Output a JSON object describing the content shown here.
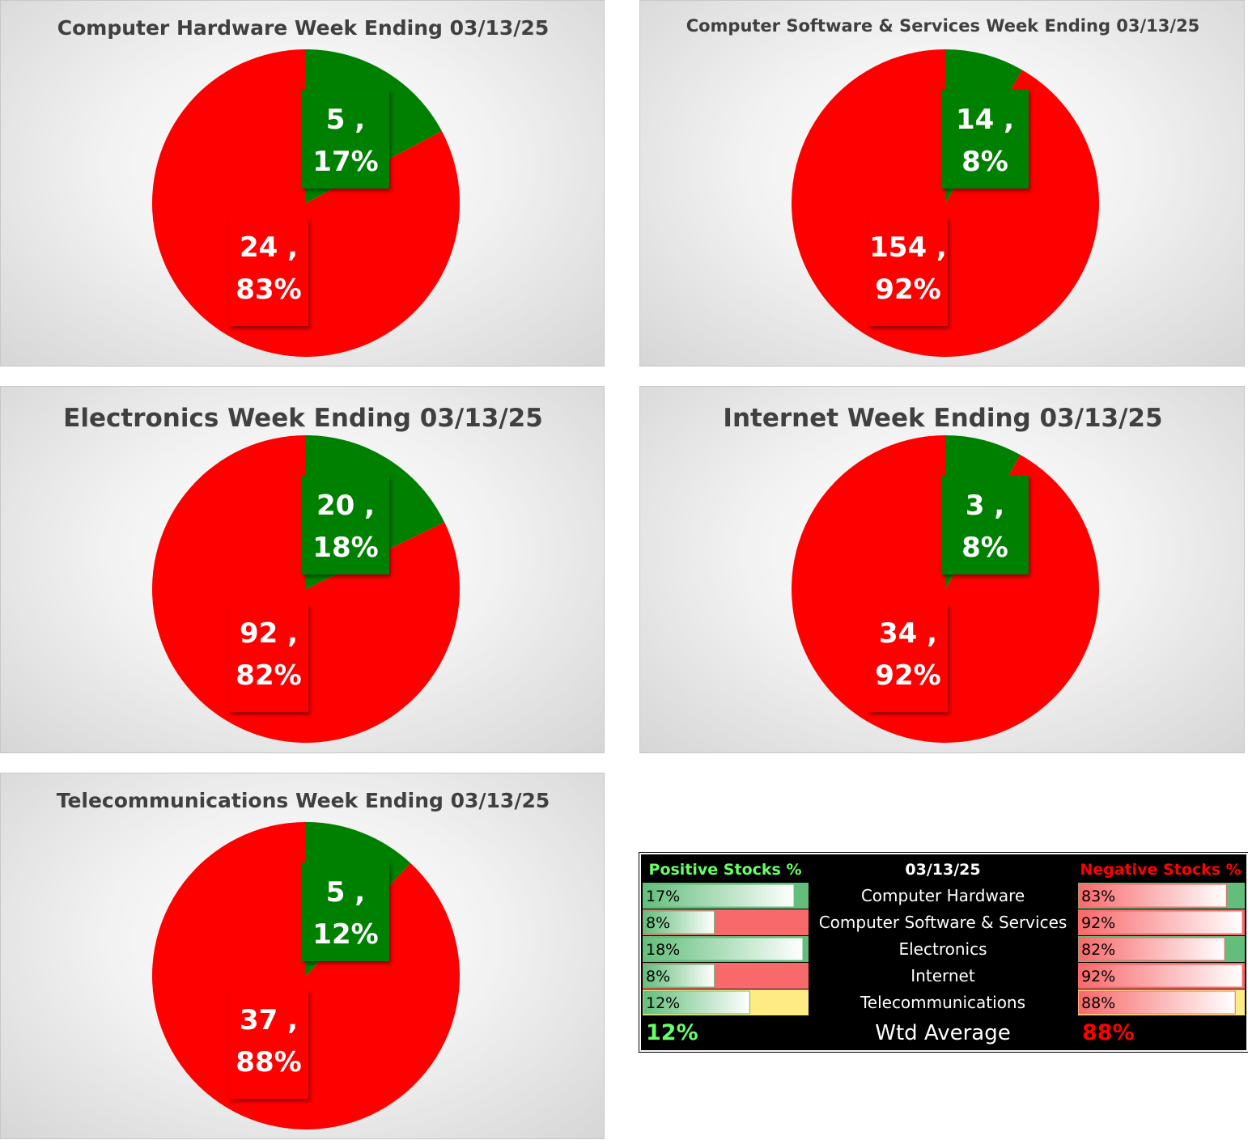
{
  "chart_data": [
    {
      "type": "pie",
      "title": "Computer Hardware Week Ending 03/13/25",
      "categories": [
        "Positive",
        "Negative"
      ],
      "values": [
        5,
        24
      ],
      "percent_labels": [
        "17%",
        "83%"
      ],
      "colors": [
        "#008000",
        "#ff0000"
      ]
    },
    {
      "type": "pie",
      "title": "Computer Software & Services Week Ending 03/13/25",
      "categories": [
        "Positive",
        "Negative"
      ],
      "values": [
        14,
        154
      ],
      "percent_labels": [
        "8%",
        "92%"
      ],
      "colors": [
        "#008000",
        "#ff0000"
      ]
    },
    {
      "type": "pie",
      "title": "Electronics Week Ending 03/13/25",
      "categories": [
        "Positive",
        "Negative"
      ],
      "values": [
        20,
        92
      ],
      "percent_labels": [
        "18%",
        "82%"
      ],
      "colors": [
        "#008000",
        "#ff0000"
      ]
    },
    {
      "type": "pie",
      "title": "Internet Week Ending 03/13/25",
      "categories": [
        "Positive",
        "Negative"
      ],
      "values": [
        3,
        34
      ],
      "percent_labels": [
        "8%",
        "92%"
      ],
      "colors": [
        "#008000",
        "#ff0000"
      ]
    },
    {
      "type": "pie",
      "title": "Telecommunications Week Ending 03/13/25",
      "categories": [
        "Positive",
        "Negative"
      ],
      "values": [
        5,
        37
      ],
      "percent_labels": [
        "12%",
        "88%"
      ],
      "colors": [
        "#008000",
        "#ff0000"
      ]
    },
    {
      "type": "table",
      "header": {
        "positive": "Positive Stocks %",
        "date": "03/13/25",
        "negative": "Negative Stocks %"
      },
      "rows": [
        {
          "sector": "Computer Hardware",
          "positive": 17,
          "positive_label": "17%",
          "negative": 83,
          "negative_label": "83%"
        },
        {
          "sector": "Computer Software & Services",
          "positive": 8,
          "positive_label": "8%",
          "negative": 92,
          "negative_label": "92%"
        },
        {
          "sector": "Electronics",
          "positive": 18,
          "positive_label": "18%",
          "negative": 82,
          "negative_label": "82%"
        },
        {
          "sector": "Internet",
          "positive": 8,
          "positive_label": "8%",
          "negative": 92,
          "negative_label": "92%"
        },
        {
          "sector": "Telecommunications",
          "positive": 12,
          "positive_label": "12%",
          "negative": 88,
          "negative_label": "88%"
        }
      ],
      "footer": {
        "positive": "12%",
        "label": "Wtd Average",
        "negative": "88%"
      },
      "colors": {
        "positive_text": "#66ff66",
        "negative_text": "#ff0000",
        "positive_bar": "#63be7b",
        "negative_bar": "#f8696b",
        "neutral_bar": "#ffeb84"
      }
    }
  ]
}
